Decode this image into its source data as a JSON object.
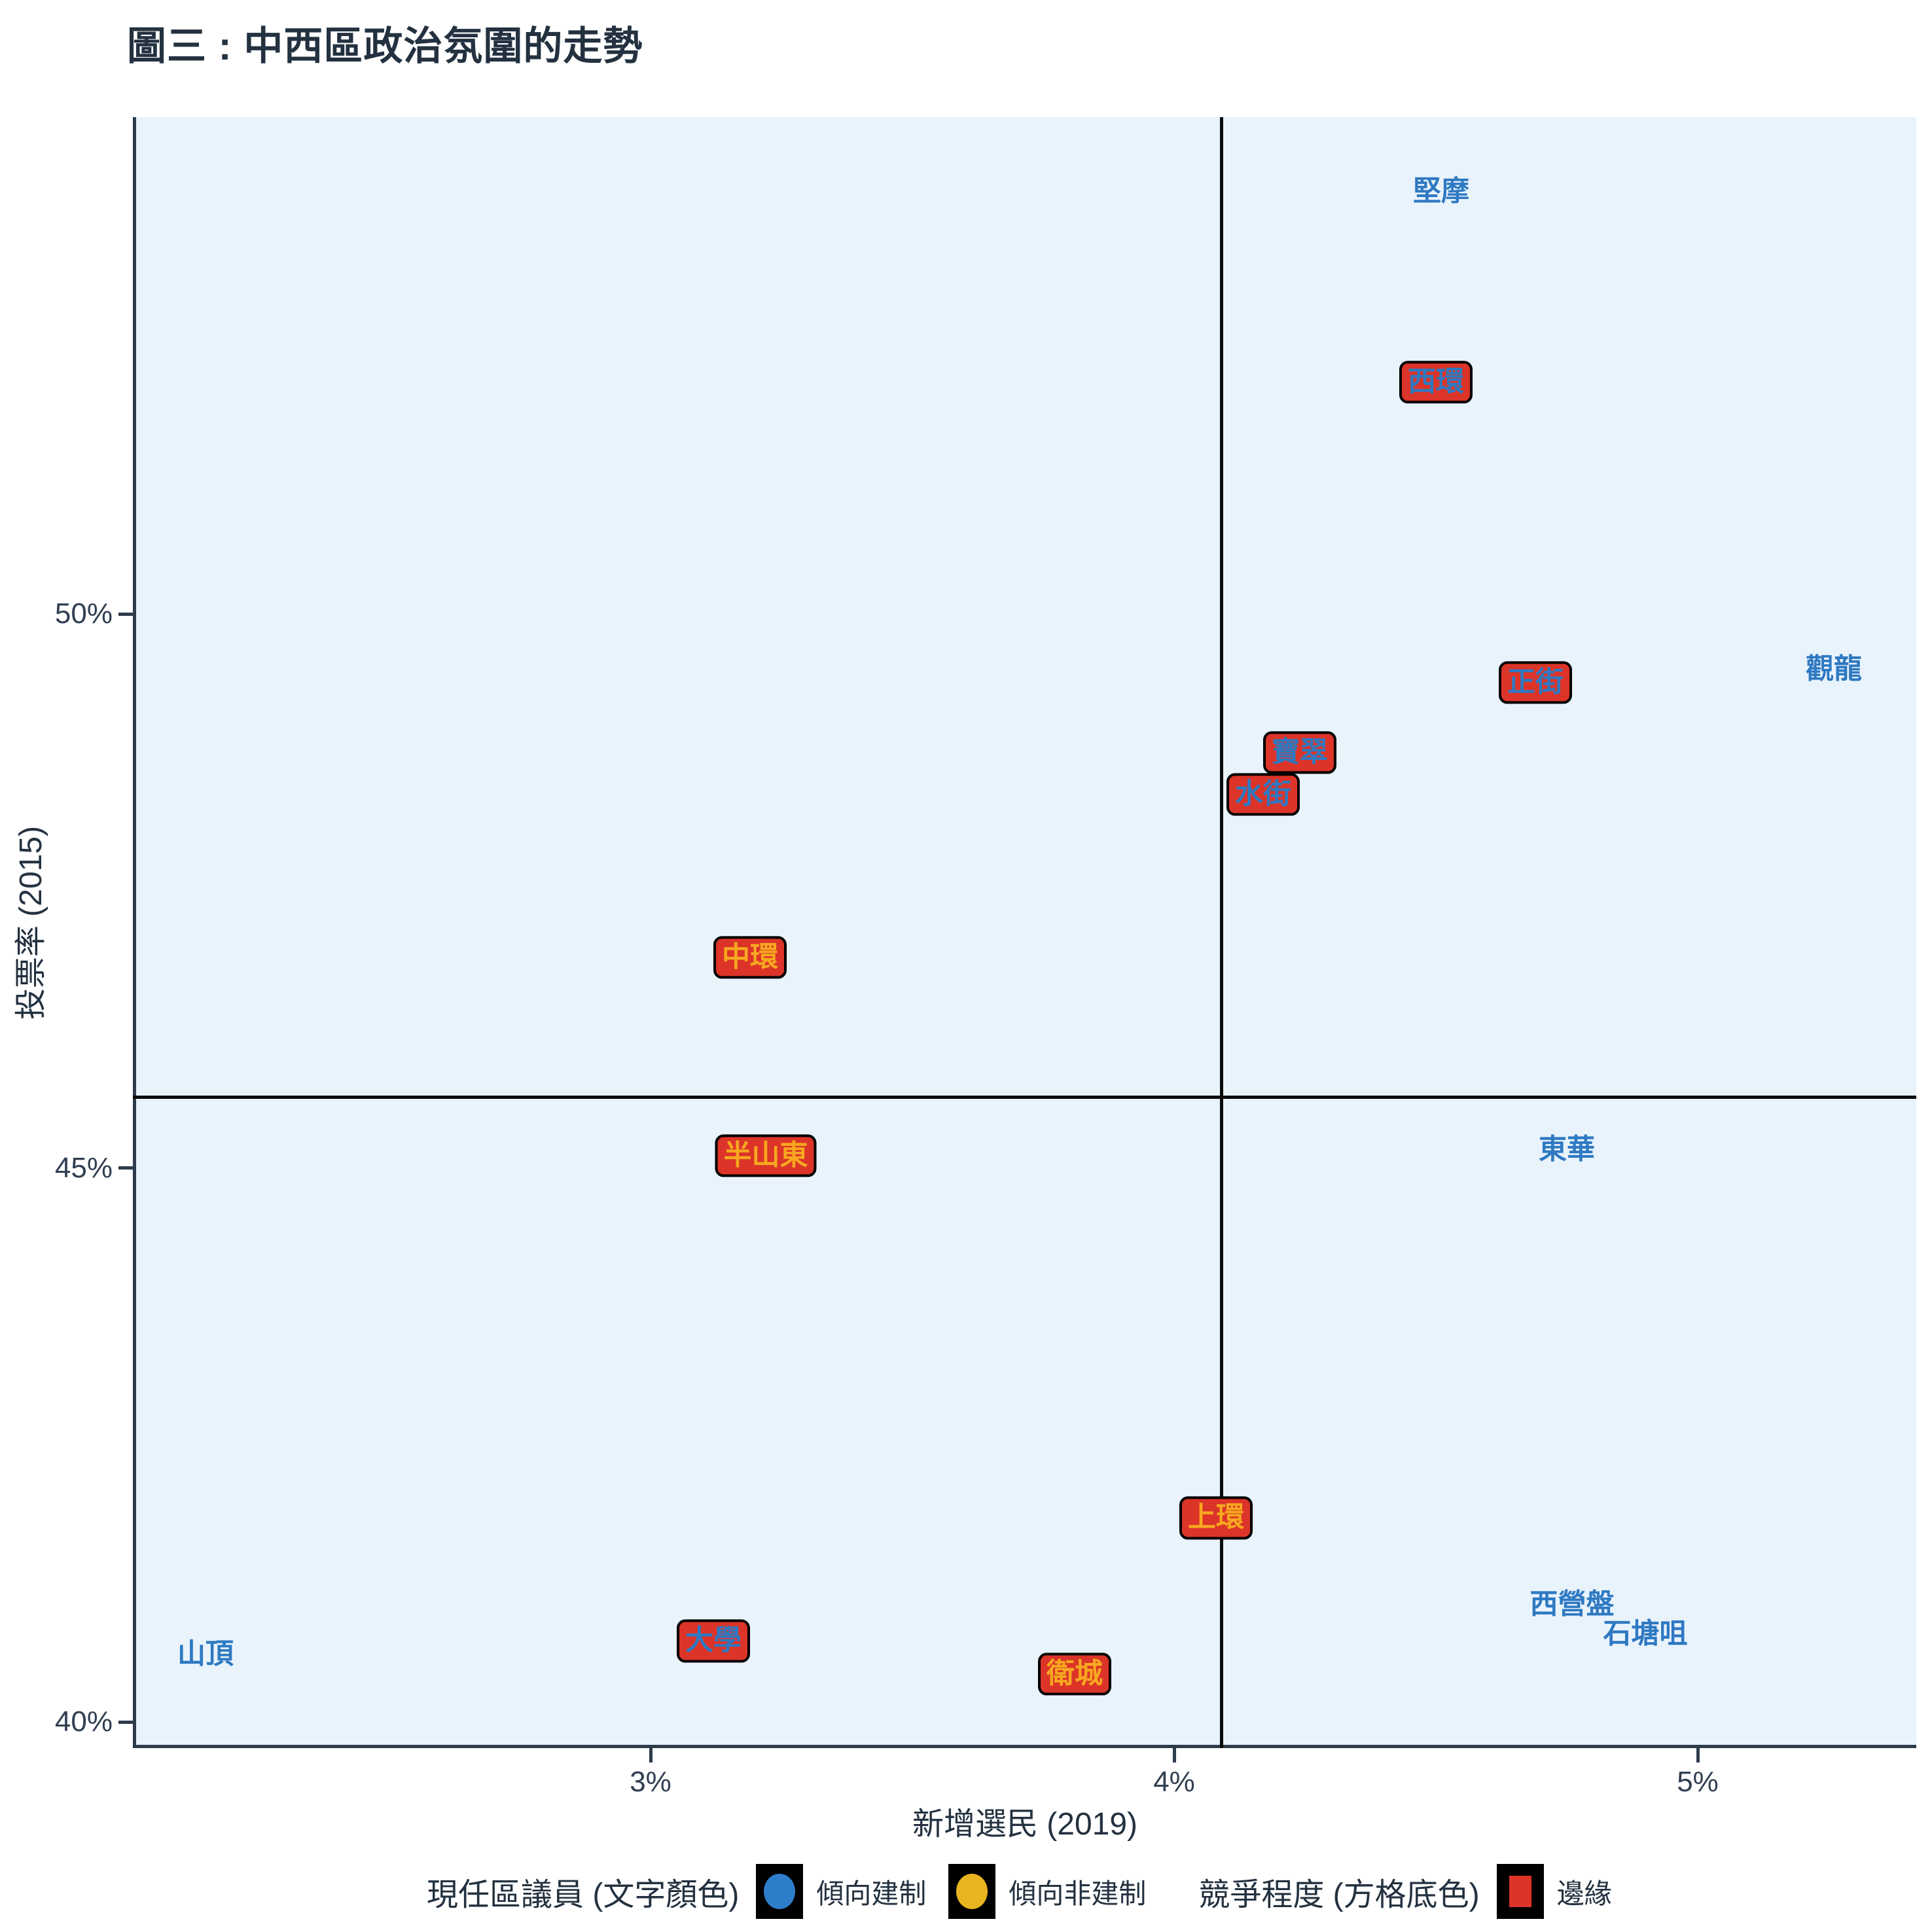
{
  "title": "圖三 : 中西區政治氛圍的走勢",
  "colors": {
    "plot_background": "#E9F3FC",
    "axis_line": "#2E3B4C",
    "title_text": "#233140",
    "axis_text": "#313F52",
    "reference_line": "#0B0B0B",
    "pro_establishment_text": "#2E79C2",
    "non_establishment_text": "#F7A81F",
    "marginal_box_fill": "#DC3428",
    "marginal_box_border": "#000000",
    "legend_key_background": "#000000",
    "legend_blue_dot": "#2D7DCB",
    "legend_yellow_dot": "#E9B41F"
  },
  "chart_data": {
    "type": "scatter",
    "title": "圖三 : 中西區政治氛圍的走勢",
    "xlabel": "新增選民 (2019)",
    "ylabel": "投票率 (2015)",
    "xlim": [
      2.01,
      5.43
    ],
    "ylim": [
      39.76,
      54.48
    ],
    "grid": false,
    "x_ticks": [
      {
        "value": 3,
        "label": "3%"
      },
      {
        "value": 4,
        "label": "4%"
      },
      {
        "value": 5,
        "label": "5%"
      }
    ],
    "y_ticks": [
      {
        "value": 50,
        "label": "50%"
      },
      {
        "value": 45,
        "label": "45%"
      },
      {
        "value": 40,
        "label": "40%"
      }
    ],
    "reference_lines": {
      "x": 4.09,
      "y": 45.64
    },
    "points": [
      {
        "name": "堅摩",
        "x": 4.51,
        "y": 53.81,
        "incumbent": "pro-establishment",
        "marginal": false
      },
      {
        "name": "西環",
        "x": 4.5,
        "y": 52.09,
        "incumbent": "pro-establishment",
        "marginal": true
      },
      {
        "name": "觀龍",
        "x": 5.26,
        "y": 49.5,
        "incumbent": "pro-establishment",
        "marginal": false
      },
      {
        "name": "正街",
        "x": 4.69,
        "y": 49.38,
        "incumbent": "pro-establishment",
        "marginal": true
      },
      {
        "name": "寶翠",
        "x": 4.24,
        "y": 48.75,
        "incumbent": "pro-establishment",
        "marginal": true
      },
      {
        "name": "水街",
        "x": 4.17,
        "y": 48.37,
        "incumbent": "pro-establishment",
        "marginal": true
      },
      {
        "name": "中環",
        "x": 3.19,
        "y": 46.9,
        "incumbent": "non-establishment",
        "marginal": true
      },
      {
        "name": "半山東",
        "x": 3.22,
        "y": 45.11,
        "incumbent": "non-establishment",
        "marginal": true
      },
      {
        "name": "東華",
        "x": 4.75,
        "y": 45.16,
        "incumbent": "pro-establishment",
        "marginal": false
      },
      {
        "name": "上環",
        "x": 4.08,
        "y": 41.84,
        "incumbent": "non-establishment",
        "marginal": true
      },
      {
        "name": "西營盤",
        "x": 4.76,
        "y": 41.06,
        "incumbent": "pro-establishment",
        "marginal": false
      },
      {
        "name": "石塘咀",
        "x": 4.9,
        "y": 40.79,
        "incumbent": "pro-establishment",
        "marginal": false
      },
      {
        "name": "山頂",
        "x": 2.15,
        "y": 40.61,
        "incumbent": "pro-establishment",
        "marginal": false
      },
      {
        "name": "大學",
        "x": 3.12,
        "y": 40.73,
        "incumbent": "pro-establishment",
        "marginal": true
      },
      {
        "name": "衛城",
        "x": 3.81,
        "y": 40.43,
        "incumbent": "non-establishment",
        "marginal": true
      }
    ],
    "legend": {
      "incumbent_title": "現任區議員 (文字顏色)",
      "incumbent_items": [
        {
          "label": "傾向建制",
          "key": "blue-circle"
        },
        {
          "label": "傾向非建制",
          "key": "yellow-circle"
        }
      ],
      "competition_title": "競爭程度 (方格底色)",
      "competition_items": [
        {
          "label": "邊緣",
          "key": "red-square"
        }
      ]
    }
  }
}
